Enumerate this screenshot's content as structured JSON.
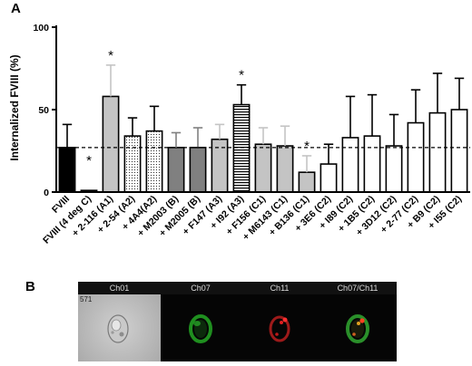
{
  "panel_a_label": "A",
  "panel_b_label": "B",
  "chart_data": {
    "type": "bar",
    "ylabel": "Internalized FVIII (%)",
    "ylim": [
      0,
      100
    ],
    "yticks": [
      0,
      50,
      100
    ],
    "reference_line": 27,
    "reference_style": "dashed",
    "significance_marker": "*",
    "categories": [
      "FVIII",
      "FVIII (4 deg C)",
      "+ 2-116 (A1)",
      "+ 2-54 (A2)",
      "+ 4A4(A2)",
      "+ M2003 (B)",
      "+ M2005 (B)",
      "+ F147 (A3)",
      "+ I92 (A3)",
      "+ F156 (C1)",
      "+ M6143 (C1)",
      "+ B136 (C1)",
      "+ 3E6 (C2)",
      "+ I89 (C2)",
      "+ 1B5 (C2)",
      "+ 3D12 (C2)",
      "+ 2-77 (C2)",
      "+ B9 (C2)",
      "+ I55 (C2)"
    ],
    "values": [
      27,
      1,
      58,
      34,
      37,
      27,
      27,
      32,
      53,
      29,
      28,
      12,
      17,
      33,
      34,
      28,
      42,
      48,
      50
    ],
    "errors": [
      14,
      0,
      19,
      11,
      15,
      9,
      12,
      9,
      12,
      10,
      12,
      10,
      12,
      25,
      25,
      19,
      20,
      24,
      19
    ],
    "fills": [
      "black",
      "black",
      "lightgray",
      "dots",
      "dots",
      "gray",
      "gray",
      "lightgray",
      "stripes",
      "lightgray",
      "lightgray",
      "lightgray",
      "white",
      "white",
      "white",
      "white",
      "white",
      "white",
      "white"
    ],
    "significant": [
      false,
      true,
      true,
      false,
      false,
      false,
      false,
      false,
      true,
      false,
      false,
      true,
      false,
      false,
      false,
      false,
      false,
      false,
      false
    ],
    "colors": {
      "black": "#000000",
      "gray": "#808080",
      "lightgray": "#c4c4c4",
      "white": "#ffffff"
    }
  },
  "micrograph_strip": {
    "channels": [
      {
        "name": "Ch01",
        "style": "brightfield"
      },
      {
        "name": "Ch07",
        "style": "green"
      },
      {
        "name": "Ch11",
        "style": "red"
      },
      {
        "name": "Ch07/Ch11",
        "style": "merge"
      }
    ],
    "object_id": "571"
  }
}
